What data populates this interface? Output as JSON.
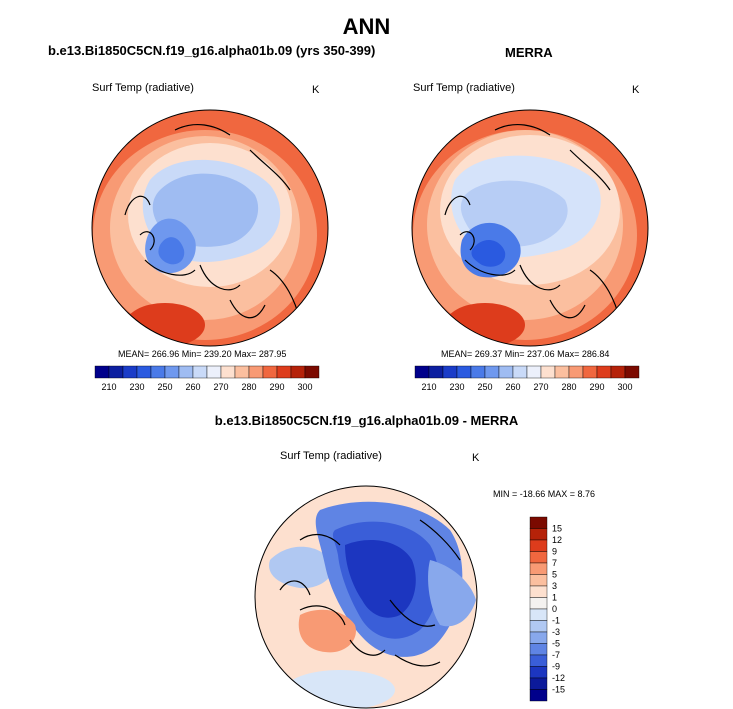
{
  "figure": {
    "title": "ANN"
  },
  "panels": [
    {
      "title": "b.e13.Bi1850C5CN.f19_g16.alpha01b.09 (yrs 350-399)",
      "variable": "Surf Temp (radiative)",
      "units": "K",
      "stats": "MEAN= 266.96  Min= 239.20  Max= 287.95"
    },
    {
      "title": "MERRA",
      "variable": "Surf Temp (radiative)",
      "units": "K",
      "stats": "MEAN= 269.37  Min= 237.06  Max= 286.84"
    },
    {
      "title": "b.e13.Bi1850C5CN.f19_g16.alpha01b.09 - MERRA",
      "variable": "Surf Temp (radiative)",
      "units": "K",
      "stats": "MIN = -18.66 MAX =   8.76"
    }
  ],
  "chart_data": [
    {
      "type": "heatmap",
      "projection": "north polar stereographic",
      "title": "b.e13.Bi1850C5CN.f19_g16.alpha01b.09 (yrs 350-399)",
      "variable": "Surf Temp (radiative)",
      "units": "K",
      "mean": 266.96,
      "min": 239.2,
      "max": 287.95,
      "colorbar": {
        "orientation": "horizontal",
        "levels": [
          210,
          220,
          230,
          240,
          250,
          255,
          260,
          265,
          270,
          275,
          280,
          285,
          290,
          295,
          300
        ],
        "tick_labels": [
          "210",
          "230",
          "250",
          "260",
          "270",
          "280",
          "290",
          "300"
        ],
        "colors": [
          "#00008b",
          "#0c1fa0",
          "#1a3cc8",
          "#2a5ae0",
          "#4a7ae8",
          "#6f98ee",
          "#9fbcf2",
          "#c9daf8",
          "#ecf0fb",
          "#fde0cf",
          "#fbbf9f",
          "#f89a74",
          "#f0673f",
          "#dd3c1c",
          "#b52209",
          "#7b0a00"
        ]
      }
    },
    {
      "type": "heatmap",
      "projection": "north polar stereographic",
      "title": "MERRA",
      "variable": "Surf Temp (radiative)",
      "units": "K",
      "mean": 269.37,
      "min": 237.06,
      "max": 286.84,
      "colorbar": {
        "orientation": "horizontal",
        "levels": [
          210,
          220,
          230,
          240,
          250,
          255,
          260,
          265,
          270,
          275,
          280,
          285,
          290,
          295,
          300
        ],
        "tick_labels": [
          "210",
          "230",
          "250",
          "260",
          "270",
          "280",
          "290",
          "300"
        ],
        "colors": [
          "#00008b",
          "#0c1fa0",
          "#1a3cc8",
          "#2a5ae0",
          "#4a7ae8",
          "#6f98ee",
          "#9fbcf2",
          "#c9daf8",
          "#ecf0fb",
          "#fde0cf",
          "#fbbf9f",
          "#f89a74",
          "#f0673f",
          "#dd3c1c",
          "#b52209",
          "#7b0a00"
        ]
      }
    },
    {
      "type": "heatmap",
      "projection": "north polar stereographic",
      "title": "b.e13.Bi1850C5CN.f19_g16.alpha01b.09 - MERRA",
      "variable": "Surf Temp (radiative)",
      "units": "K",
      "min": -18.66,
      "max": 8.76,
      "colorbar": {
        "orientation": "vertical",
        "levels": [
          15,
          12,
          9,
          7,
          5,
          3,
          1,
          0,
          -1,
          -3,
          -5,
          -7,
          -9,
          -12,
          -15
        ],
        "tick_labels": [
          "15",
          "12",
          "9",
          "7",
          "5",
          "3",
          "1",
          "0",
          "-1",
          "-3",
          "-5",
          "-7",
          "-9",
          "-12",
          "-15"
        ],
        "colors": [
          "#7b0a00",
          "#b52209",
          "#dd3c1c",
          "#f0673f",
          "#f89a74",
          "#fbbf9f",
          "#fde0cf",
          "#f4f2f0",
          "#d8e6f8",
          "#b0c8f2",
          "#88a8ec",
          "#5f84e4",
          "#3a5ed8",
          "#1c36c0",
          "#0c1a9a",
          "#00008b"
        ]
      }
    }
  ]
}
